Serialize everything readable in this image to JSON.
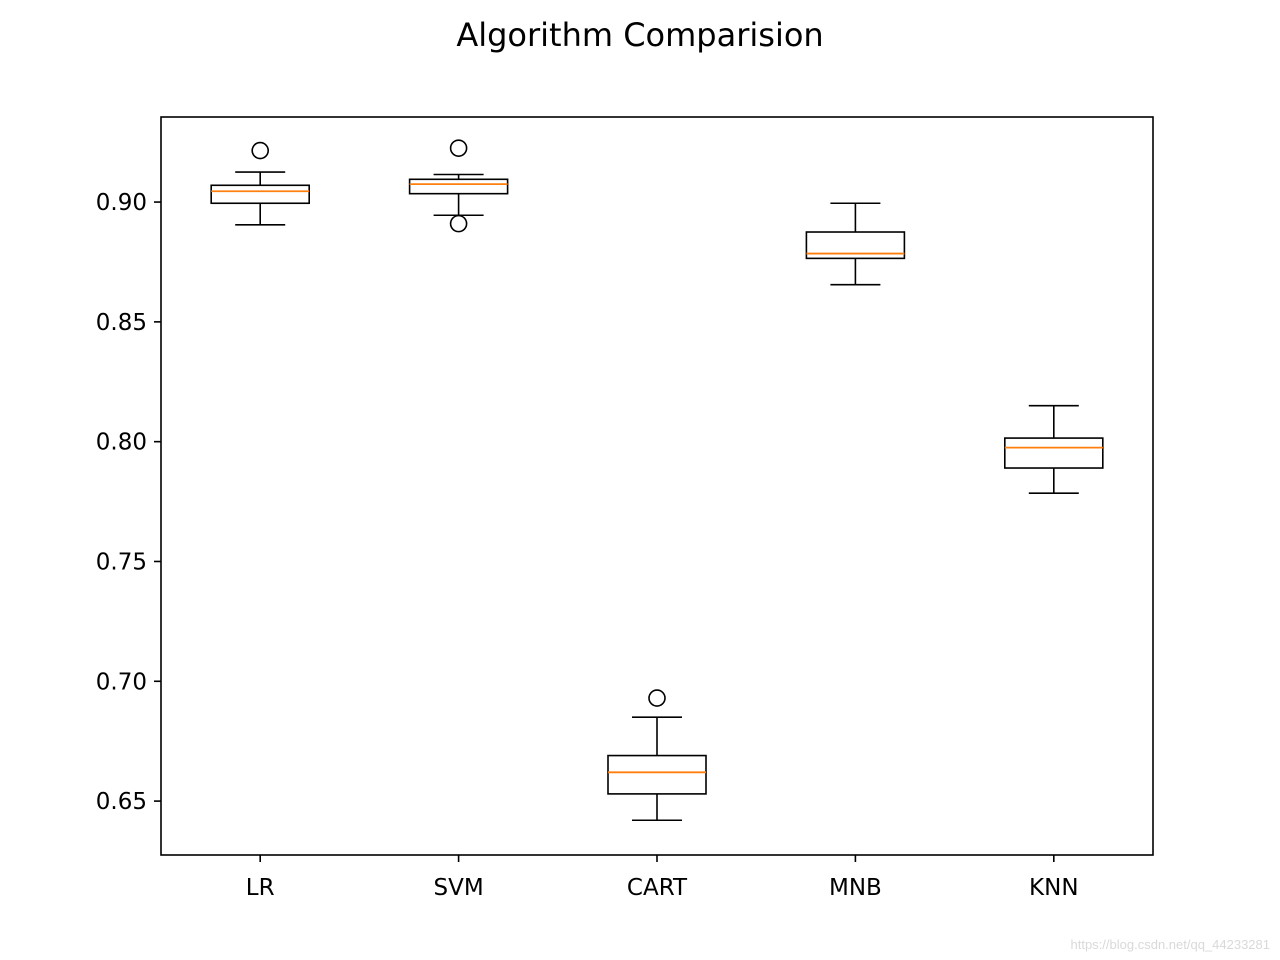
{
  "chart_data": {
    "type": "box",
    "title": "Algorithm Comparision",
    "xlabel": "",
    "ylabel": "",
    "categories": [
      "LR",
      "SVM",
      "CART",
      "MNB",
      "KNN"
    ],
    "ylim": [
      0.6275,
      0.9355
    ],
    "yticks": [
      0.65,
      0.7,
      0.75,
      0.8,
      0.85,
      0.9
    ],
    "ytick_labels": [
      "0.65",
      "0.70",
      "0.75",
      "0.80",
      "0.85",
      "0.90"
    ],
    "grid": false,
    "legend": "none",
    "boxes": [
      {
        "name": "LR",
        "whisker_low": 0.8905,
        "q1": 0.8995,
        "median": 0.9045,
        "q3": 0.907,
        "whisker_high": 0.9125,
        "outliers": [
          0.9215
        ]
      },
      {
        "name": "SVM",
        "whisker_low": 0.8945,
        "q1": 0.9035,
        "median": 0.9075,
        "q3": 0.9095,
        "whisker_high": 0.9115,
        "outliers": [
          0.9225,
          0.891
        ]
      },
      {
        "name": "CART",
        "whisker_low": 0.642,
        "q1": 0.653,
        "median": 0.662,
        "q3": 0.669,
        "whisker_high": 0.685,
        "outliers": [
          0.693
        ]
      },
      {
        "name": "MNB",
        "whisker_low": 0.8655,
        "q1": 0.8765,
        "median": 0.8785,
        "q3": 0.8875,
        "whisker_high": 0.8995,
        "outliers": []
      },
      {
        "name": "KNN",
        "whisker_low": 0.7785,
        "q1": 0.789,
        "median": 0.7975,
        "q3": 0.8015,
        "whisker_high": 0.815,
        "outliers": []
      }
    ],
    "colors": {
      "box": "#000000",
      "median": "#ff7f0e",
      "axes": "#000000"
    }
  },
  "watermark": "https://blog.csdn.net/qq_44233281"
}
